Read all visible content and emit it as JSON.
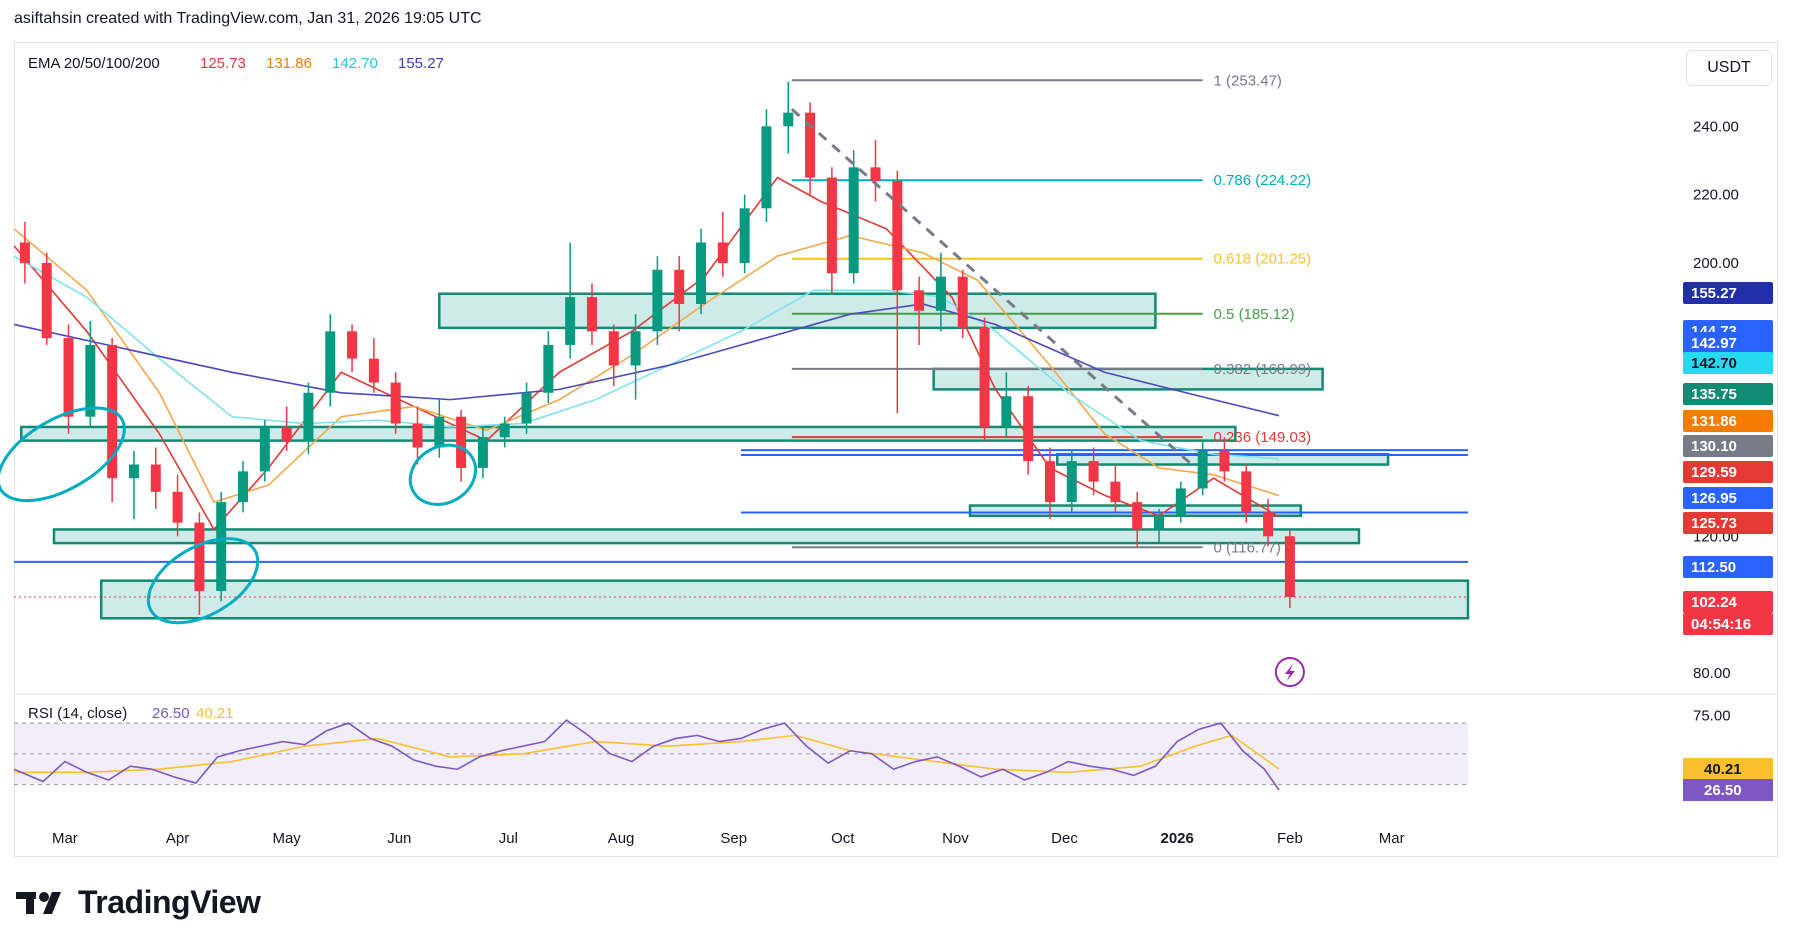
{
  "header": {
    "author_line": "asiftahsin created with TradingView.com, Jan 31, 2026 19:05 UTC"
  },
  "brand": {
    "name": "TradingView"
  },
  "currency": "USDT",
  "chart_data": {
    "type": "candlestick",
    "ema": {
      "title": "EMA 20/50/100/200",
      "values": [
        {
          "period": 20,
          "value": "125.73",
          "color": "#e53935"
        },
        {
          "period": 50,
          "value": "131.86",
          "color": "#f57c00"
        },
        {
          "period": 100,
          "value": "142.70",
          "color": "#26c6da"
        },
        {
          "period": 200,
          "value": "155.27",
          "color": "#3f3fb5"
        }
      ]
    },
    "y_axis": {
      "min": 75,
      "max": 260,
      "ticks": [
        "240.00",
        "220.00",
        "200.00",
        "120.00",
        "80.00"
      ]
    },
    "x_axis": {
      "ticks": [
        {
          "label": "Mar",
          "day": 14
        },
        {
          "label": "Apr",
          "day": 45
        },
        {
          "label": "May",
          "day": 75
        },
        {
          "label": "Jun",
          "day": 106
        },
        {
          "label": "Jul",
          "day": 136
        },
        {
          "label": "Aug",
          "day": 167
        },
        {
          "label": "Sep",
          "day": 198
        },
        {
          "label": "Oct",
          "day": 228
        },
        {
          "label": "Nov",
          "day": 259
        },
        {
          "label": "Dec",
          "day": 289
        },
        {
          "label": "2026",
          "day": 320,
          "bold": true
        },
        {
          "label": "Feb",
          "day": 351
        },
        {
          "label": "Mar",
          "day": 379
        }
      ]
    },
    "fibonacci": [
      {
        "label": "1 (253.47)",
        "price": 253.47,
        "color": "#787b86"
      },
      {
        "label": "0.786 (224.22)",
        "price": 224.22,
        "color": "#00acc1"
      },
      {
        "label": "0.618 (201.25)",
        "price": 201.25,
        "color": "#fbc02d"
      },
      {
        "label": "0.5 (185.12)",
        "price": 185.12,
        "color": "#43a047"
      },
      {
        "label": "0.382 (168.99)",
        "price": 168.99,
        "color": "#787b86"
      },
      {
        "label": "0.236 (149.03)",
        "price": 149.03,
        "color": "#e53935"
      },
      {
        "label": "0 (116.77)",
        "price": 116.77,
        "color": "#787b86"
      }
    ],
    "price_labels": [
      {
        "value": "155.27",
        "bg": "#2130a8",
        "fg": "#ffffff"
      },
      {
        "value": "144.73",
        "bg": "#2962ff",
        "fg": "#ffffff"
      },
      {
        "value": "142.97",
        "bg": "#2962ff",
        "fg": "#ffffff"
      },
      {
        "value": "142.70",
        "bg": "#26d9f0",
        "fg": "#131722"
      },
      {
        "value": "135.75",
        "bg": "#138a73",
        "fg": "#ffffff"
      },
      {
        "value": "131.86",
        "bg": "#f57c00",
        "fg": "#ffffff"
      },
      {
        "value": "130.10",
        "bg": "#787b86",
        "fg": "#ffffff"
      },
      {
        "value": "129.59",
        "bg": "#e53935",
        "fg": "#ffffff"
      },
      {
        "value": "126.95",
        "bg": "#2962ff",
        "fg": "#ffffff"
      },
      {
        "value": "125.73",
        "bg": "#e53935",
        "fg": "#ffffff"
      },
      {
        "value": "112.50",
        "bg": "#2962ff",
        "fg": "#ffffff"
      },
      {
        "value": "102.24",
        "bg": "#f23645",
        "fg": "#ffffff"
      },
      {
        "value": "04:54:16",
        "bg": "#f23645",
        "fg": "#ffffff"
      }
    ],
    "horizontal_lines": [
      {
        "price": 112.5,
        "color": "#2962ff"
      },
      {
        "price": 126.95,
        "color": "#2962ff"
      },
      {
        "price": 145.2,
        "color": "#2962ff"
      },
      {
        "price": 143.8,
        "color": "#2962ff"
      }
    ],
    "zones": [
      {
        "from_day": 117,
        "to_day": 314,
        "low": 181,
        "high": 191
      },
      {
        "from_day": 253,
        "to_day": 360,
        "low": 163,
        "high": 169
      },
      {
        "from_day": 2,
        "to_day": 336,
        "low": 148,
        "high": 152
      },
      {
        "from_day": 287,
        "to_day": 378,
        "low": 141,
        "high": 144
      },
      {
        "from_day": 263,
        "to_day": 354,
        "low": 126,
        "high": 129
      },
      {
        "from_day": 11,
        "to_day": 370,
        "low": 118,
        "high": 122
      },
      {
        "from_day": 24,
        "to_day": 400,
        "low": 96,
        "high": 107
      }
    ],
    "trendline": {
      "from": {
        "day": 214,
        "price": 245
      },
      "to": {
        "day": 324,
        "price": 141
      },
      "color": "#787b86"
    },
    "circles": [
      {
        "day": 13,
        "price": 144
      },
      {
        "day": 118,
        "price": 138
      },
      {
        "day": 52,
        "price": 107
      }
    ],
    "last_price": 102.24,
    "countdown": "04:54:16",
    "candles": [
      {
        "day": 0,
        "o": 206,
        "h": 212,
        "l": 194,
        "c": 200
      },
      {
        "day": 6,
        "o": 200,
        "h": 203,
        "l": 176,
        "c": 178
      },
      {
        "day": 12,
        "o": 178,
        "h": 182,
        "l": 150,
        "c": 155
      },
      {
        "day": 18,
        "o": 155,
        "h": 183,
        "l": 152,
        "c": 176
      },
      {
        "day": 24,
        "o": 176,
        "h": 178,
        "l": 130,
        "c": 137
      },
      {
        "day": 30,
        "o": 137,
        "h": 145,
        "l": 125,
        "c": 141
      },
      {
        "day": 36,
        "o": 141,
        "h": 146,
        "l": 128,
        "c": 133
      },
      {
        "day": 42,
        "o": 133,
        "h": 138,
        "l": 120,
        "c": 124
      },
      {
        "day": 48,
        "o": 124,
        "h": 127,
        "l": 97,
        "c": 104
      },
      {
        "day": 54,
        "o": 104,
        "h": 133,
        "l": 101,
        "c": 130
      },
      {
        "day": 60,
        "o": 130,
        "h": 142,
        "l": 127,
        "c": 139
      },
      {
        "day": 66,
        "o": 139,
        "h": 154,
        "l": 136,
        "c": 152
      },
      {
        "day": 72,
        "o": 152,
        "h": 158,
        "l": 145,
        "c": 148
      },
      {
        "day": 78,
        "o": 148,
        "h": 165,
        "l": 144,
        "c": 162
      },
      {
        "day": 84,
        "o": 162,
        "h": 185,
        "l": 158,
        "c": 180
      },
      {
        "day": 90,
        "o": 180,
        "h": 182,
        "l": 168,
        "c": 172
      },
      {
        "day": 96,
        "o": 172,
        "h": 178,
        "l": 162,
        "c": 165
      },
      {
        "day": 102,
        "o": 165,
        "h": 168,
        "l": 150,
        "c": 153
      },
      {
        "day": 108,
        "o": 153,
        "h": 158,
        "l": 141,
        "c": 146
      },
      {
        "day": 114,
        "o": 146,
        "h": 160,
        "l": 143,
        "c": 155
      },
      {
        "day": 120,
        "o": 155,
        "h": 157,
        "l": 136,
        "c": 140
      },
      {
        "day": 126,
        "o": 140,
        "h": 152,
        "l": 137,
        "c": 149
      },
      {
        "day": 132,
        "o": 149,
        "h": 155,
        "l": 146,
        "c": 153
      },
      {
        "day": 138,
        "o": 153,
        "h": 165,
        "l": 150,
        "c": 162
      },
      {
        "day": 144,
        "o": 162,
        "h": 180,
        "l": 159,
        "c": 176
      },
      {
        "day": 150,
        "o": 176,
        "h": 206,
        "l": 172,
        "c": 190
      },
      {
        "day": 156,
        "o": 190,
        "h": 194,
        "l": 176,
        "c": 180
      },
      {
        "day": 162,
        "o": 180,
        "h": 182,
        "l": 164,
        "c": 170
      },
      {
        "day": 168,
        "o": 170,
        "h": 185,
        "l": 160,
        "c": 180
      },
      {
        "day": 174,
        "o": 180,
        "h": 202,
        "l": 176,
        "c": 198
      },
      {
        "day": 180,
        "o": 198,
        "h": 202,
        "l": 180,
        "c": 188
      },
      {
        "day": 186,
        "o": 188,
        "h": 210,
        "l": 185,
        "c": 206
      },
      {
        "day": 192,
        "o": 206,
        "h": 215,
        "l": 196,
        "c": 200
      },
      {
        "day": 198,
        "o": 200,
        "h": 220,
        "l": 197,
        "c": 216
      },
      {
        "day": 204,
        "o": 216,
        "h": 245,
        "l": 212,
        "c": 240
      },
      {
        "day": 210,
        "o": 240,
        "h": 253,
        "l": 232,
        "c": 244
      },
      {
        "day": 216,
        "o": 244,
        "h": 247,
        "l": 220,
        "c": 225
      },
      {
        "day": 222,
        "o": 225,
        "h": 228,
        "l": 191,
        "c": 197
      },
      {
        "day": 228,
        "o": 197,
        "h": 233,
        "l": 194,
        "c": 228
      },
      {
        "day": 234,
        "o": 228,
        "h": 236,
        "l": 218,
        "c": 224
      },
      {
        "day": 240,
        "o": 224,
        "h": 227,
        "l": 156,
        "c": 192
      },
      {
        "day": 246,
        "o": 192,
        "h": 196,
        "l": 176,
        "c": 186
      },
      {
        "day": 252,
        "o": 186,
        "h": 203,
        "l": 180,
        "c": 196
      },
      {
        "day": 258,
        "o": 196,
        "h": 198,
        "l": 178,
        "c": 181
      },
      {
        "day": 264,
        "o": 181,
        "h": 184,
        "l": 148,
        "c": 152
      },
      {
        "day": 270,
        "o": 152,
        "h": 168,
        "l": 149,
        "c": 161
      },
      {
        "day": 276,
        "o": 161,
        "h": 164,
        "l": 138,
        "c": 142
      },
      {
        "day": 282,
        "o": 142,
        "h": 146,
        "l": 125,
        "c": 130
      },
      {
        "day": 288,
        "o": 130,
        "h": 145,
        "l": 127,
        "c": 142
      },
      {
        "day": 294,
        "o": 142,
        "h": 146,
        "l": 132,
        "c": 136
      },
      {
        "day": 300,
        "o": 136,
        "h": 141,
        "l": 127,
        "c": 130
      },
      {
        "day": 306,
        "o": 130,
        "h": 133,
        "l": 117,
        "c": 122
      },
      {
        "day": 312,
        "o": 122,
        "h": 128,
        "l": 118,
        "c": 126
      },
      {
        "day": 318,
        "o": 126,
        "h": 136,
        "l": 124,
        "c": 134
      },
      {
        "day": 324,
        "o": 134,
        "h": 148,
        "l": 132,
        "c": 145
      },
      {
        "day": 330,
        "o": 145,
        "h": 149,
        "l": 136,
        "c": 139
      },
      {
        "day": 336,
        "o": 139,
        "h": 141,
        "l": 124,
        "c": 127
      },
      {
        "day": 342,
        "o": 127,
        "h": 131,
        "l": 117,
        "c": 120
      },
      {
        "day": 348,
        "o": 120,
        "h": 122,
        "l": 99,
        "c": 102.24
      }
    ],
    "ema_series": {
      "ema20": [
        [
          0,
          205
        ],
        [
          20,
          180
        ],
        [
          40,
          150
        ],
        [
          55,
          122
        ],
        [
          70,
          140
        ],
        [
          90,
          168
        ],
        [
          110,
          158
        ],
        [
          130,
          148
        ],
        [
          150,
          168
        ],
        [
          170,
          180
        ],
        [
          190,
          196
        ],
        [
          210,
          225
        ],
        [
          222,
          218
        ],
        [
          240,
          210
        ],
        [
          258,
          190
        ],
        [
          270,
          163
        ],
        [
          285,
          140
        ],
        [
          300,
          132
        ],
        [
          315,
          126
        ],
        [
          330,
          137
        ],
        [
          348,
          125.7
        ]
      ],
      "ema50": [
        [
          0,
          210
        ],
        [
          20,
          192
        ],
        [
          40,
          162
        ],
        [
          55,
          130
        ],
        [
          70,
          135
        ],
        [
          90,
          155
        ],
        [
          110,
          158
        ],
        [
          130,
          151
        ],
        [
          150,
          160
        ],
        [
          170,
          173
        ],
        [
          190,
          188
        ],
        [
          210,
          202
        ],
        [
          230,
          208
        ],
        [
          250,
          203
        ],
        [
          265,
          195
        ],
        [
          285,
          170
        ],
        [
          300,
          150
        ],
        [
          315,
          140
        ],
        [
          330,
          138
        ],
        [
          348,
          131.9
        ]
      ],
      "ema100": [
        [
          0,
          202
        ],
        [
          20,
          190
        ],
        [
          40,
          172
        ],
        [
          60,
          155
        ],
        [
          80,
          153
        ],
        [
          100,
          154
        ],
        [
          120,
          152
        ],
        [
          140,
          153
        ],
        [
          160,
          160
        ],
        [
          180,
          170
        ],
        [
          200,
          180
        ],
        [
          220,
          192
        ],
        [
          240,
          192
        ],
        [
          255,
          190
        ],
        [
          270,
          180
        ],
        [
          290,
          162
        ],
        [
          310,
          148
        ],
        [
          330,
          144
        ],
        [
          348,
          142.7
        ]
      ],
      "ema200": [
        [
          0,
          182
        ],
        [
          30,
          175
        ],
        [
          60,
          168
        ],
        [
          90,
          162
        ],
        [
          120,
          160
        ],
        [
          150,
          163
        ],
        [
          180,
          170
        ],
        [
          200,
          176
        ],
        [
          230,
          185
        ],
        [
          250,
          188
        ],
        [
          270,
          182
        ],
        [
          300,
          168
        ],
        [
          330,
          160
        ],
        [
          348,
          155.3
        ]
      ]
    },
    "rsi": {
      "title": "RSI (14, close)",
      "value": "26.50",
      "ma_value": "40.21",
      "levels": [
        "75.00"
      ],
      "upper": 70,
      "lower": 30,
      "ymin": 20,
      "ymax": 85,
      "series": [
        [
          0,
          40
        ],
        [
          8,
          32
        ],
        [
          14,
          45
        ],
        [
          20,
          38
        ],
        [
          26,
          33
        ],
        [
          32,
          42
        ],
        [
          38,
          40
        ],
        [
          44,
          35
        ],
        [
          50,
          31
        ],
        [
          56,
          48
        ],
        [
          62,
          52
        ],
        [
          68,
          55
        ],
        [
          74,
          58
        ],
        [
          80,
          56
        ],
        [
          86,
          65
        ],
        [
          92,
          70
        ],
        [
          98,
          60
        ],
        [
          104,
          55
        ],
        [
          110,
          46
        ],
        [
          116,
          42
        ],
        [
          122,
          40
        ],
        [
          128,
          48
        ],
        [
          134,
          52
        ],
        [
          140,
          55
        ],
        [
          146,
          58
        ],
        [
          152,
          72
        ],
        [
          158,
          62
        ],
        [
          164,
          50
        ],
        [
          170,
          45
        ],
        [
          176,
          55
        ],
        [
          182,
          60
        ],
        [
          188,
          62
        ],
        [
          194,
          58
        ],
        [
          200,
          60
        ],
        [
          206,
          66
        ],
        [
          212,
          70
        ],
        [
          218,
          55
        ],
        [
          224,
          44
        ],
        [
          230,
          52
        ],
        [
          236,
          50
        ],
        [
          242,
          40
        ],
        [
          248,
          45
        ],
        [
          254,
          48
        ],
        [
          260,
          42
        ],
        [
          266,
          35
        ],
        [
          272,
          40
        ],
        [
          278,
          33
        ],
        [
          284,
          38
        ],
        [
          290,
          45
        ],
        [
          296,
          42
        ],
        [
          302,
          40
        ],
        [
          308,
          36
        ],
        [
          314,
          42
        ],
        [
          320,
          58
        ],
        [
          326,
          66
        ],
        [
          332,
          70
        ],
        [
          338,
          52
        ],
        [
          344,
          40
        ],
        [
          348,
          26.5
        ]
      ],
      "ma_series": [
        [
          0,
          38
        ],
        [
          20,
          38
        ],
        [
          40,
          40
        ],
        [
          60,
          45
        ],
        [
          80,
          55
        ],
        [
          100,
          60
        ],
        [
          120,
          48
        ],
        [
          140,
          50
        ],
        [
          160,
          58
        ],
        [
          180,
          55
        ],
        [
          200,
          58
        ],
        [
          215,
          62
        ],
        [
          230,
          52
        ],
        [
          250,
          46
        ],
        [
          270,
          40
        ],
        [
          290,
          38
        ],
        [
          310,
          42
        ],
        [
          325,
          55
        ],
        [
          335,
          62
        ],
        [
          348,
          40.2
        ]
      ]
    }
  }
}
